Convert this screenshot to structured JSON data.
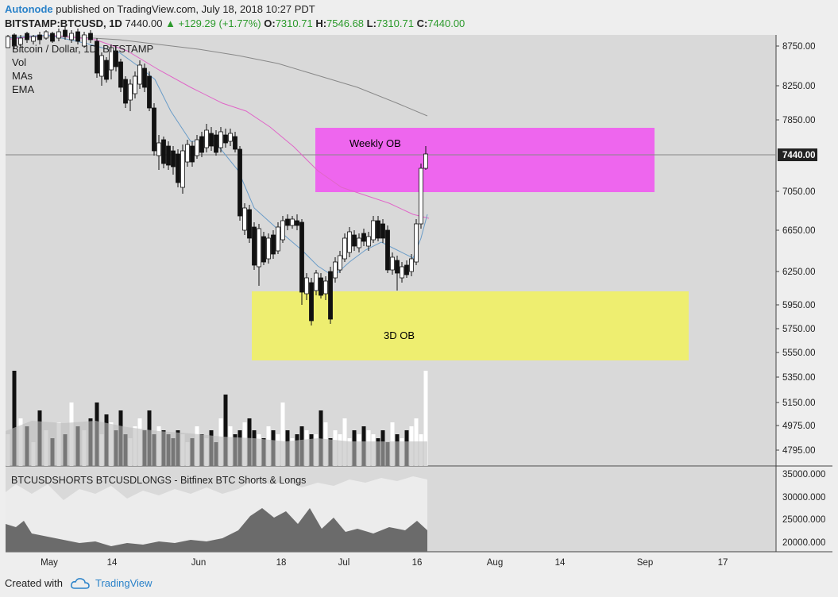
{
  "header": {
    "author": "Autonode",
    "published": "published on TradingView.com, July 18, 2018 10:27 PDT",
    "symbol": "BITSTAMP:BTCUSD, 1D",
    "last": "7440.00",
    "change": "▲ +129.29 (+1.77%)",
    "o_label": "O:",
    "o": "7310.71",
    "h_label": "H:",
    "h": "7546.68",
    "l_label": "L:",
    "l": "7310.71",
    "c_label": "C:",
    "c": "7440.00"
  },
  "legend": {
    "title": "Bitcoin / Dollar, 1D, BITSTAMP",
    "items": [
      "Vol",
      "MAs",
      "EMA"
    ]
  },
  "subpanel_title": "BTCUSDSHORTS BTCUSDLONGS - Bitfinex BTC Shorts & Longs",
  "footer": {
    "created_with": "Created with",
    "brand": "TradingView"
  },
  "chart_data": [
    {
      "type": "candlestick",
      "title": "Bitcoin / Dollar, 1D, BITSTAMP",
      "price_labels": [
        "8750.00",
        "8250.00",
        "7850.00",
        "7440.00",
        "7050.00",
        "6650.00",
        "6250.00",
        "5950.00",
        "5750.00",
        "5550.00",
        "5350.00",
        "5150.00",
        "4975.00",
        "4795.00"
      ],
      "last_price": "7440.00",
      "x_ticks": [
        "May",
        "14",
        "Jun",
        "18",
        "Jul",
        "16",
        "Aug",
        "14",
        "Sep",
        "17"
      ],
      "annotations": [
        {
          "label": "Weekly OB",
          "price_range": [
            7050,
            7780
          ],
          "color": "#ee66ee"
        },
        {
          "label": "3D OB",
          "price_range": [
            5470,
            6070
          ],
          "color": "#eeee70"
        }
      ],
      "series": [
        {
          "name": "Vol"
        },
        {
          "name": "MAs"
        },
        {
          "name": "EMA"
        }
      ]
    },
    {
      "type": "area",
      "title": "BTCUSDSHORTS BTCUSDLONGS - Bitfinex BTC Shorts & Longs",
      "y_ticks": [
        "35000.000",
        "30000.000",
        "25000.000",
        "20000.000"
      ]
    }
  ]
}
